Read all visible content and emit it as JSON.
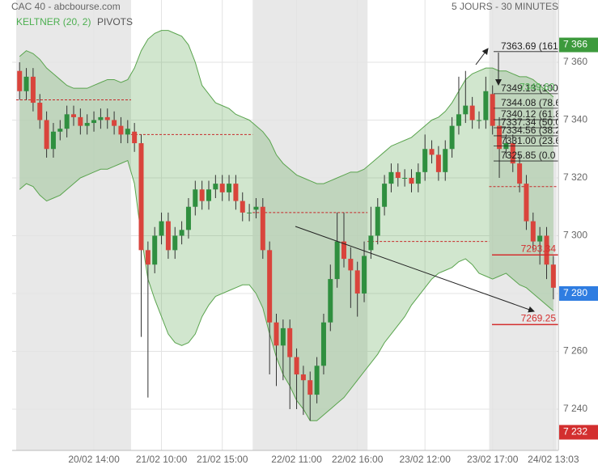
{
  "chart_data": {
    "type": "candlestick",
    "title": "CAC 40 - abcbourse.com",
    "subtitle": "5 JOURS - 30 MINUTES",
    "categories": [
      null,
      null,
      null,
      null,
      null,
      null,
      null,
      null,
      null,
      null,
      null,
      "20/02 14:00",
      null,
      null,
      null,
      null,
      null,
      null,
      null,
      null,
      null,
      "21/02 10:00",
      null,
      null,
      null,
      null,
      null,
      null,
      null,
      null,
      "21/02 15:00",
      null,
      null,
      null,
      null,
      null,
      null,
      null,
      null,
      null,
      null,
      "22/02 11:00",
      null,
      null,
      null,
      null,
      null,
      null,
      null,
      null,
      "22/02 16:00",
      null,
      null,
      null,
      null,
      null,
      null,
      null,
      null,
      null,
      "23/02 12:00",
      null,
      null,
      null,
      null,
      null,
      null,
      null,
      null,
      null,
      "23/02 17:00",
      null,
      null,
      null,
      null,
      null,
      null,
      null,
      null,
      "24/02 13:03"
    ],
    "open": [
      7357,
      7350,
      7355,
      7346,
      7340,
      7330,
      7336,
      7337,
      7342,
      7341,
      7338,
      7339,
      7340,
      7341,
      7340,
      7338,
      7335,
      7336,
      7332,
      7295,
      7290,
      7300,
      7305,
      7295,
      7300,
      7302,
      7310,
      7316,
      7312,
      7316,
      7318,
      7315,
      7318,
      7312,
      7308,
      7309,
      7310,
      7295,
      7270,
      7262,
      7268,
      7258,
      7252,
      7250,
      7245,
      7255,
      7270,
      7285,
      7298,
      7292,
      7288,
      7280,
      7295,
      7300,
      7310,
      7318,
      7322,
      7320,
      7320,
      7318,
      7322,
      7330,
      7328,
      7322,
      7330,
      7338,
      7342,
      7345,
      7340,
      7340,
      7349,
      7338,
      7330,
      7332,
      7325,
      7318,
      7305,
      7298,
      7300,
      7290
    ],
    "high": [
      7360,
      7358,
      7358,
      7349,
      7343,
      7339,
      7340,
      7345,
      7345,
      7344,
      7342,
      7343,
      7344,
      7344,
      7343,
      7341,
      7340,
      7339,
      7335,
      7298,
      7303,
      7308,
      7308,
      7303,
      7305,
      7313,
      7319,
      7319,
      7319,
      7321,
      7321,
      7321,
      7321,
      7315,
      7311,
      7313,
      7313,
      7298,
      7273,
      7271,
      7271,
      7261,
      7255,
      7253,
      7258,
      7273,
      7290,
      7308,
      7308,
      7296,
      7291,
      7298,
      7310,
      7313,
      7321,
      7325,
      7325,
      7323,
      7323,
      7325,
      7335,
      7333,
      7331,
      7333,
      7341,
      7355,
      7357,
      7348,
      7343,
      7355,
      7352,
      7341,
      7335,
      7335,
      7328,
      7321,
      7308,
      7303,
      7303,
      7293
    ],
    "low": [
      7347,
      7347,
      7343,
      7337,
      7327,
      7327,
      7333,
      7334,
      7338,
      7335,
      7335,
      7336,
      7337,
      7337,
      7335,
      7332,
      7332,
      7329,
      7265,
      7244,
      7287,
      7297,
      7292,
      7292,
      7297,
      7299,
      7307,
      7309,
      7309,
      7313,
      7312,
      7312,
      7309,
      7305,
      7305,
      7306,
      7292,
      7252,
      7248,
      7250,
      7240,
      7240,
      7238,
      7236,
      7242,
      7252,
      7267,
      7282,
      7289,
      7275,
      7272,
      7277,
      7292,
      7297,
      7307,
      7315,
      7317,
      7317,
      7315,
      7315,
      7319,
      7325,
      7319,
      7319,
      7327,
      7335,
      7339,
      7337,
      7337,
      7337,
      7335,
      7320,
      7327,
      7322,
      7315,
      7302,
      7295,
      7290,
      7285,
      7278
    ],
    "close": [
      7350,
      7355,
      7346,
      7340,
      7330,
      7336,
      7337,
      7342,
      7341,
      7338,
      7339,
      7340,
      7341,
      7340,
      7338,
      7335,
      7337,
      7332,
      7295,
      7290,
      7300,
      7305,
      7295,
      7300,
      7302,
      7310,
      7316,
      7312,
      7316,
      7318,
      7315,
      7318,
      7312,
      7308,
      7308,
      7310,
      7295,
      7270,
      7262,
      7268,
      7258,
      7252,
      7250,
      7245,
      7255,
      7270,
      7285,
      7298,
      7292,
      7288,
      7280,
      7293,
      7300,
      7310,
      7318,
      7322,
      7320,
      7320,
      7318,
      7322,
      7330,
      7328,
      7322,
      7330,
      7338,
      7342,
      7345,
      7340,
      7340,
      7350,
      7338,
      7330,
      7332,
      7325,
      7318,
      7305,
      7298,
      7300,
      7290,
      7282
    ],
    "up_color": "#2f8f3f",
    "down_color": "#d9443c",
    "ylim": [
      7226,
      7380
    ],
    "yticks": [
      {
        "value": 7240,
        "label": "7 240"
      },
      {
        "value": 7260,
        "label": "7 260"
      },
      {
        "value": 7280,
        "label": "7 280"
      },
      {
        "value": 7300,
        "label": "7 300"
      },
      {
        "value": 7320,
        "label": "7 320"
      },
      {
        "value": 7340,
        "label": "7 340"
      },
      {
        "value": 7360,
        "label": "7 360"
      }
    ],
    "grid": true,
    "keltner": {
      "name": "KELTNER (20, 2)",
      "color": "#5aa44e",
      "upper": [
        7362,
        7364,
        7363,
        7361,
        7358,
        7356,
        7354,
        7352,
        7351,
        7351,
        7351,
        7352,
        7353,
        7354,
        7354,
        7353,
        7354,
        7358,
        7364,
        7368,
        7370,
        7371,
        7371,
        7370,
        7369,
        7366,
        7360,
        7352,
        7349,
        7346,
        7345,
        7344,
        7342,
        7341,
        7340,
        7338,
        7336,
        7333,
        7328,
        7325,
        7323,
        7321,
        7320,
        7319,
        7318,
        7318,
        7319,
        7320,
        7321,
        7322,
        7322,
        7323,
        7325,
        7327,
        7329,
        7331,
        7332,
        7333,
        7334,
        7336,
        7338,
        7340,
        7341,
        7343,
        7346,
        7350,
        7354,
        7356,
        7357,
        7358,
        7358,
        7357,
        7357,
        7356,
        7355,
        7355,
        7354,
        7352,
        7350,
        7348
      ],
      "lower": [
        7316,
        7318,
        7317,
        7314,
        7312,
        7313,
        7314,
        7316,
        7318,
        7320,
        7321,
        7322,
        7323,
        7323,
        7324,
        7325,
        7326,
        7318,
        7300,
        7285,
        7278,
        7272,
        7266,
        7263,
        7262,
        7263,
        7266,
        7272,
        7276,
        7279,
        7280,
        7281,
        7282,
        7283,
        7283,
        7280,
        7275,
        7266,
        7258,
        7252,
        7248,
        7243,
        7240,
        7236,
        7236,
        7238,
        7240,
        7242,
        7244,
        7247,
        7250,
        7253,
        7256,
        7259,
        7263,
        7266,
        7269,
        7272,
        7276,
        7279,
        7282,
        7285,
        7287,
        7288,
        7289,
        7291,
        7292,
        7290,
        7287,
        7286,
        7285,
        7286,
        7287,
        7285,
        7283,
        7282,
        7280,
        7278,
        7276,
        7274
      ]
    },
    "pivots": {
      "name": "PIVOTS",
      "color": "#c62828",
      "values": [
        7347,
        7335,
        7308,
        7298,
        7317
      ]
    },
    "levels": {
      "color": "#d32f2f",
      "values": [
        7293.34,
        7269.25
      ]
    },
    "fib": [
      {
        "value": 7363.69,
        "label": "7363.69 (161"
      },
      {
        "value": 7349.13,
        "label": "7349.13 (100"
      },
      {
        "value": 7344.08,
        "label": "7344.08 (78.6"
      },
      {
        "value": 7340.12,
        "label": "7340.12 (61.8"
      },
      {
        "value": 7337.34,
        "label": "7337.34 (50.0"
      },
      {
        "value": 7334.56,
        "label": "7334.56 (38.2"
      },
      {
        "value": 7331.0,
        "label": "7331.00 (23.6"
      },
      {
        "value": 7325.85,
        "label": "7325.85 (0.0"
      }
    ],
    "high_label": {
      "value": 7349.6,
      "label": "7349.60",
      "color": "#4caf50"
    },
    "price_tags": [
      {
        "value": 7366,
        "label": "7 366",
        "color": "#3d9a3d"
      },
      {
        "value": 7280,
        "label": "7 280",
        "color": "#2f7de1"
      },
      {
        "value": 7232,
        "label": "7 232",
        "color": "#d32f2f"
      }
    ]
  }
}
